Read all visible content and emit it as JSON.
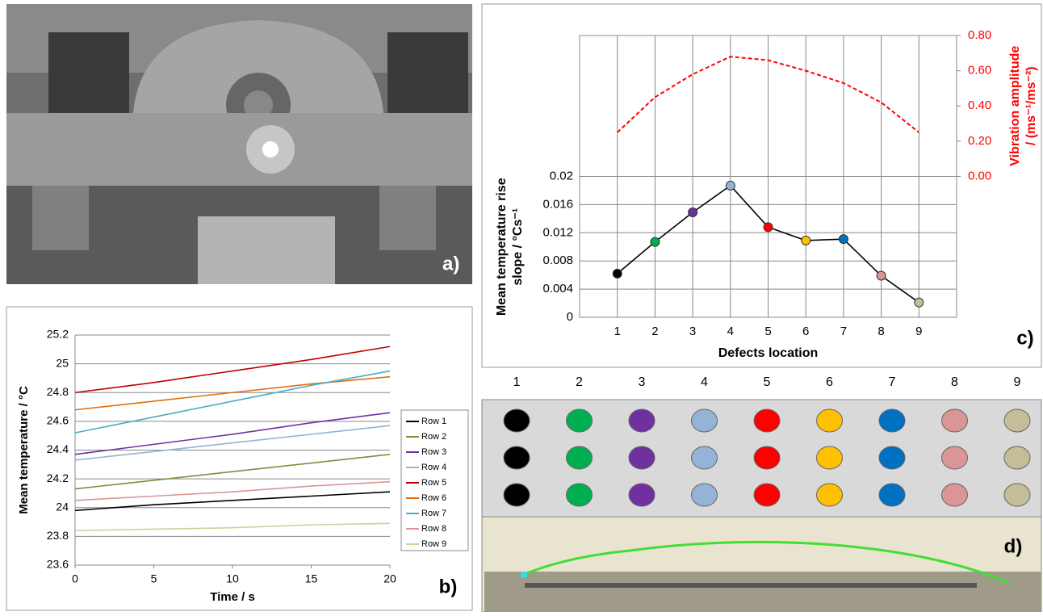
{
  "panels": {
    "a": {
      "label": "a)"
    },
    "d": {
      "label": "d)",
      "column_labels": [
        "1",
        "2",
        "3",
        "4",
        "5",
        "6",
        "7",
        "8",
        "9"
      ],
      "dot_colors": [
        "#000000",
        "#00b050",
        "#7030a0",
        "#95b3d7",
        "#ff0000",
        "#ffc000",
        "#0070c0",
        "#d99694",
        "#c4bd97"
      ]
    }
  },
  "chart_data": [
    {
      "type": "line",
      "label": "b)",
      "xlabel": "Time / s",
      "ylabel": [
        "Mean temperature / °C"
      ],
      "x": [
        0,
        5,
        10,
        15,
        20
      ],
      "xlim": [
        0,
        20
      ],
      "xticks": [
        0,
        5,
        10,
        15,
        20
      ],
      "ylim": [
        23.6,
        25.2
      ],
      "yticks": [
        23.6,
        23.8,
        24,
        24.2,
        24.4,
        24.6,
        24.8,
        25,
        25.2
      ],
      "grid": true,
      "xgrid": false,
      "legend": "right",
      "series": [
        {
          "name": "Row 1",
          "color": "#000000",
          "values": [
            23.98,
            24.02,
            24.05,
            24.08,
            24.11
          ]
        },
        {
          "name": "Row 2",
          "color": "#77933c",
          "values": [
            24.13,
            24.19,
            24.25,
            24.31,
            24.37
          ]
        },
        {
          "name": "Row 3",
          "color": "#7030a0",
          "values": [
            24.37,
            24.44,
            24.51,
            24.59,
            24.66
          ]
        },
        {
          "name": "Row 4",
          "color": "#95b3d7",
          "values": [
            24.33,
            24.39,
            24.45,
            24.51,
            24.57
          ]
        },
        {
          "name": "Row 5",
          "color": "#c00000",
          "values": [
            24.8,
            24.87,
            24.95,
            25.03,
            25.12
          ]
        },
        {
          "name": "Row 6",
          "color": "#e46c0a",
          "values": [
            24.68,
            24.74,
            24.8,
            24.86,
            24.91
          ]
        },
        {
          "name": "Row 7",
          "color": "#4bacc6",
          "values": [
            24.52,
            24.63,
            24.74,
            24.85,
            24.95
          ]
        },
        {
          "name": "Row 8",
          "color": "#d99694",
          "values": [
            24.05,
            24.08,
            24.11,
            24.15,
            24.18
          ]
        },
        {
          "name": "Row 9",
          "color": "#c3d69b",
          "values": [
            23.84,
            23.85,
            23.86,
            23.88,
            23.89
          ]
        }
      ]
    },
    {
      "type": "line",
      "label": "c)",
      "xlabel": "Defects location",
      "ylabel": [
        "Mean temperature rise",
        "slope / °Cs⁻¹"
      ],
      "y2label": [
        "Vibration amplitude",
        "/ (ms⁻¹/ms⁻²)"
      ],
      "y2_color": "#ff0000",
      "x": [
        1,
        2,
        3,
        4,
        5,
        6,
        7,
        8,
        9
      ],
      "xlim": [
        0,
        10
      ],
      "xticks": [
        1,
        2,
        3,
        4,
        5,
        6,
        7,
        8,
        9
      ],
      "ylim": [
        0,
        0.04
      ],
      "yticks": [
        0,
        0.004,
        0.008,
        0.012,
        0.016,
        0.02
      ],
      "y2lim": [
        -0.8,
        0.8
      ],
      "y2ticks": [
        {
          "value": 0,
          "label": "0.00"
        },
        {
          "value": 0.2,
          "label": "0.20"
        },
        {
          "value": 0.4,
          "label": "0.40"
        },
        {
          "value": 0.6,
          "label": "0.60"
        },
        {
          "value": 0.8,
          "label": "0.80"
        }
      ],
      "grid": true,
      "xgrid": true,
      "series": [
        {
          "color": "#000000",
          "values": [
            0.0062,
            0.0107,
            0.0149,
            0.0187,
            0.0128,
            0.0109,
            0.0111,
            0.0059,
            0.0021
          ],
          "marker_colors": [
            "#000000",
            "#00b050",
            "#7030a0",
            "#95b3d7",
            "#ff0000",
            "#ffc000",
            "#0070c0",
            "#d99694",
            "#c4bd97"
          ]
        },
        {
          "color": "#ff0000",
          "axis": "y2",
          "dash": true,
          "values": [
            0.25,
            0.45,
            0.58,
            0.68,
            0.66,
            0.6,
            0.53,
            0.42,
            0.25
          ]
        }
      ]
    }
  ]
}
